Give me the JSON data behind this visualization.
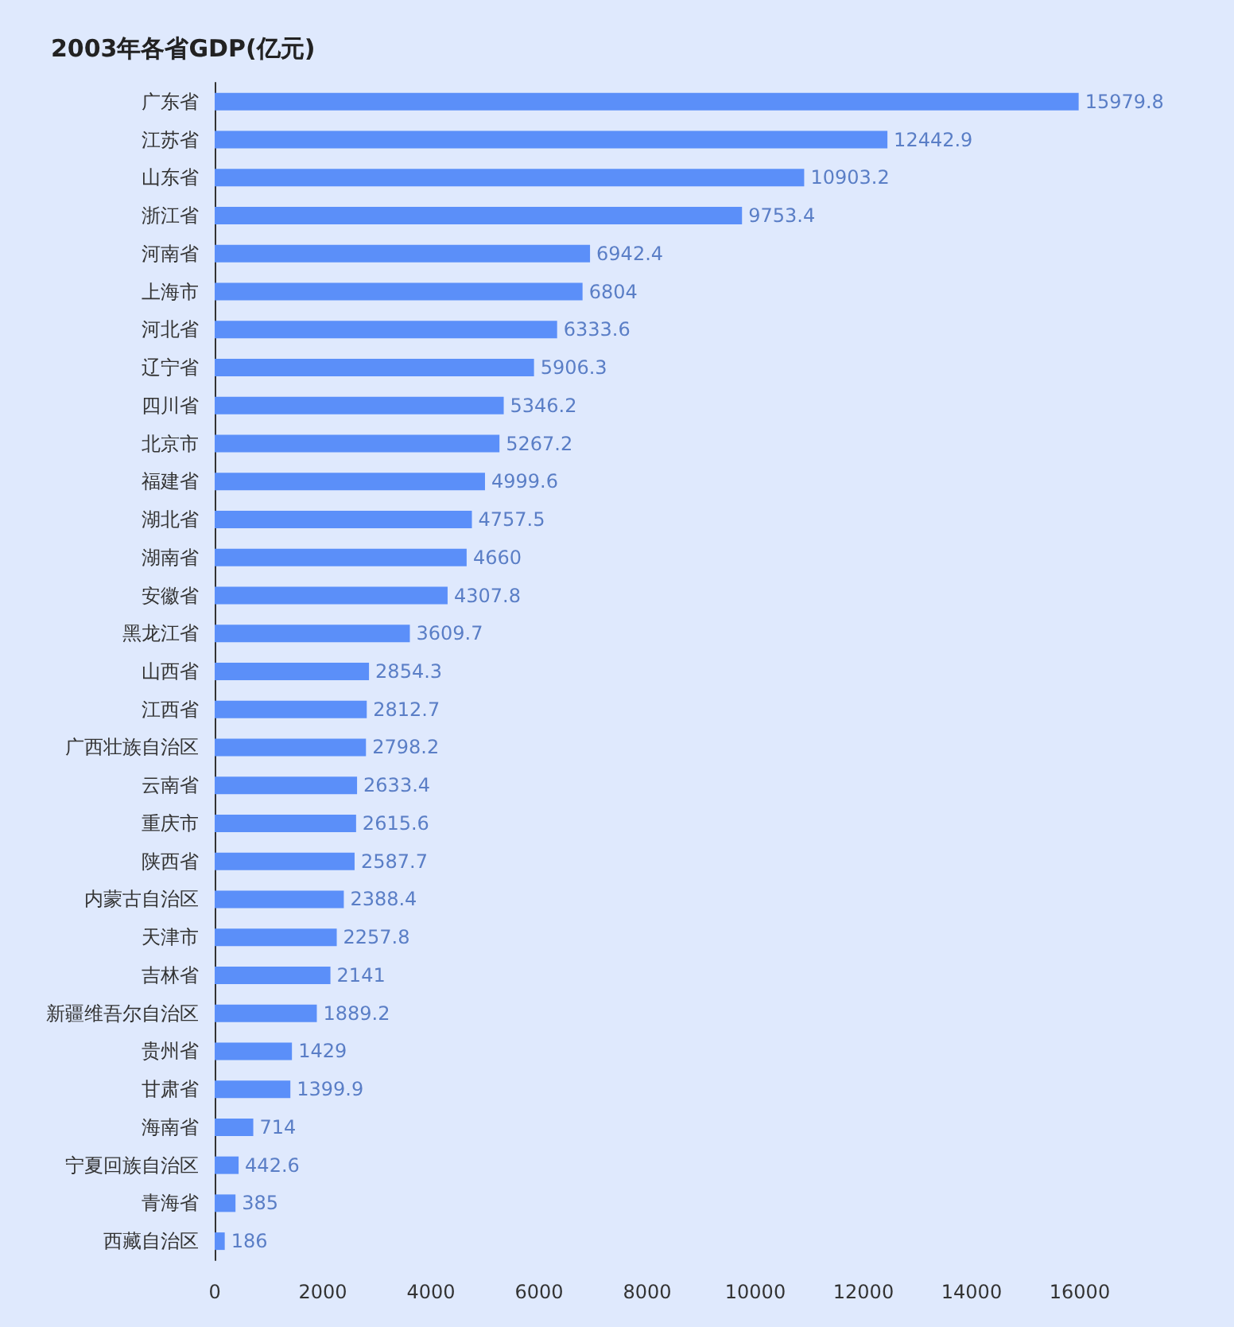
{
  "chart_data": {
    "type": "bar",
    "orientation": "horizontal",
    "title": "2003年各省GDP(亿元)",
    "categories": [
      "广东省",
      "江苏省",
      "山东省",
      "浙江省",
      "河南省",
      "上海市",
      "河北省",
      "辽宁省",
      "四川省",
      "北京市",
      "福建省",
      "湖北省",
      "湖南省",
      "安徽省",
      "黑龙江省",
      "山西省",
      "江西省",
      "广西壮族自治区",
      "云南省",
      "重庆市",
      "陕西省",
      "内蒙古自治区",
      "天津市",
      "吉林省",
      "新疆维吾尔自治区",
      "贵州省",
      "甘肃省",
      "海南省",
      "宁夏回族自治区",
      "青海省",
      "西藏自治区"
    ],
    "values": [
      15979.8,
      12442.9,
      10903.2,
      9753.4,
      6942.4,
      6804,
      6333.6,
      5906.3,
      5346.2,
      5267.2,
      4999.6,
      4757.5,
      4660,
      4307.8,
      3609.7,
      2854.3,
      2812.7,
      2798.2,
      2633.4,
      2615.6,
      2587.7,
      2388.4,
      2257.8,
      2141,
      1889.2,
      1429,
      1399.9,
      714,
      442.6,
      385,
      186
    ],
    "color": "#5b8ff9",
    "xlim": [
      0,
      16000
    ],
    "xticks": [
      0,
      2000,
      4000,
      6000,
      8000,
      10000,
      12000,
      14000,
      16000
    ],
    "data_labels": true,
    "grid": false
  }
}
